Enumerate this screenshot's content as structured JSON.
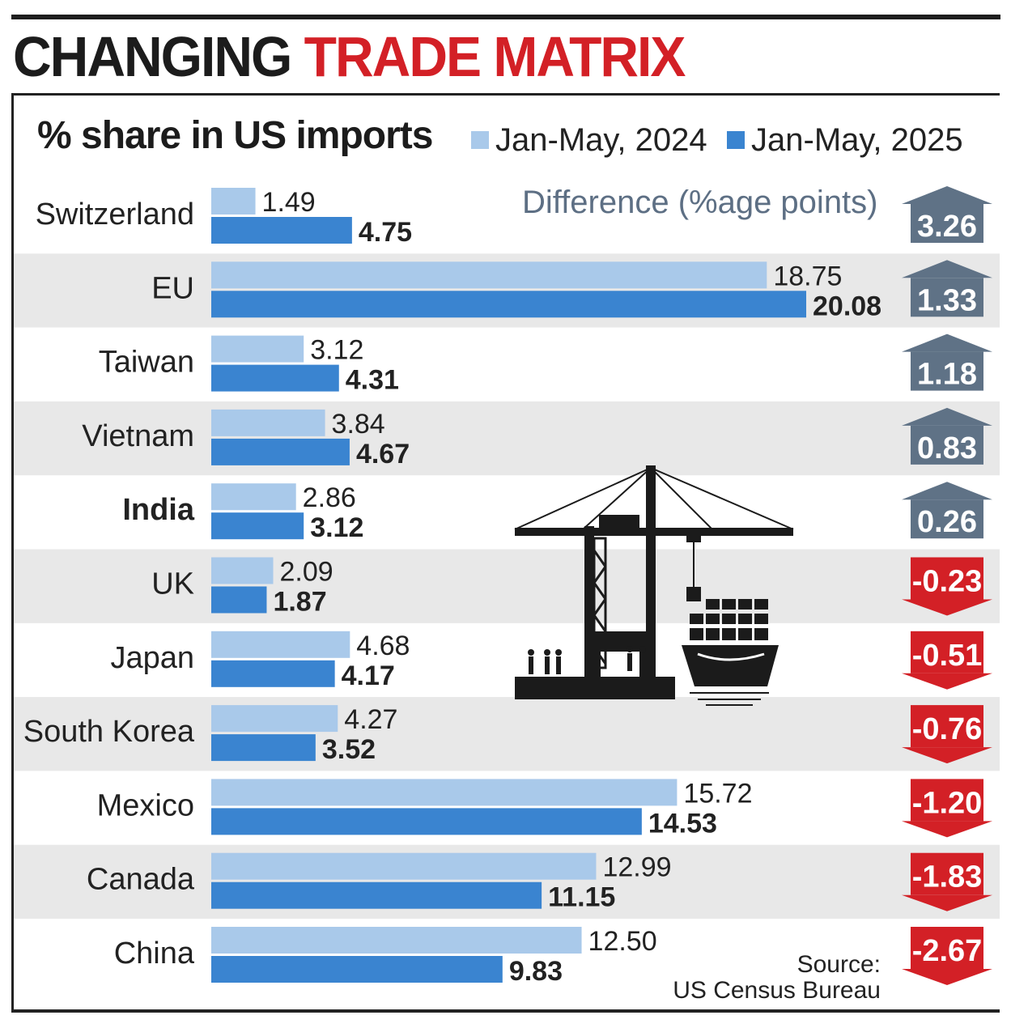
{
  "headline": {
    "part1": "CHANGING",
    "part2": "TRADE MATRIX"
  },
  "subtitle": "% share in US imports",
  "colors": {
    "series_2024": "#a9c9ea",
    "series_2025": "#3a84d0",
    "up": "#5f7286",
    "down": "#d32026",
    "band": "#e8e8e8",
    "headline_red": "#d32026"
  },
  "diff_label": "Difference (%age points)",
  "source": {
    "line1": "Source:",
    "line2": "US Census Bureau"
  },
  "icons": [
    "crane-ship-icon",
    "up-arrow-icon",
    "down-arrow-icon"
  ],
  "chart_data": {
    "type": "bar",
    "orientation": "horizontal",
    "categories": [
      "Switzerland",
      "EU",
      "Taiwan",
      "Vietnam",
      "India",
      "UK",
      "Japan",
      "South Korea",
      "Mexico",
      "Canada",
      "China"
    ],
    "highlight_category": "India",
    "series": [
      {
        "name": "Jan-May, 2024",
        "values": [
          1.49,
          18.75,
          3.12,
          3.84,
          2.86,
          2.09,
          4.68,
          4.27,
          15.72,
          12.99,
          12.5
        ],
        "labels": [
          "1.49",
          "18.75",
          "3.12",
          "3.84",
          "2.86",
          "2.09",
          "4.68",
          "4.27",
          "15.72",
          "12.99",
          "12.50"
        ]
      },
      {
        "name": "Jan-May, 2025",
        "values": [
          4.75,
          20.08,
          4.31,
          4.67,
          3.12,
          1.87,
          4.17,
          3.52,
          14.53,
          11.15,
          9.83
        ],
        "labels": [
          "4.75",
          "20.08",
          "4.31",
          "4.67",
          "3.12",
          "1.87",
          "4.17",
          "3.52",
          "14.53",
          "11.15",
          "9.83"
        ]
      }
    ],
    "difference": [
      3.26,
      1.33,
      1.18,
      0.83,
      0.26,
      -0.23,
      -0.51,
      -0.76,
      -1.2,
      -1.83,
      -2.67
    ],
    "difference_labels": [
      "3.26",
      "1.33",
      "1.18",
      "0.83",
      "0.26",
      "-0.23",
      "-0.51",
      "-0.76",
      "-1.20",
      "-1.83",
      "-2.67"
    ],
    "xlim": [
      0,
      20.08
    ],
    "grid": false,
    "legend_position": "top-right"
  }
}
